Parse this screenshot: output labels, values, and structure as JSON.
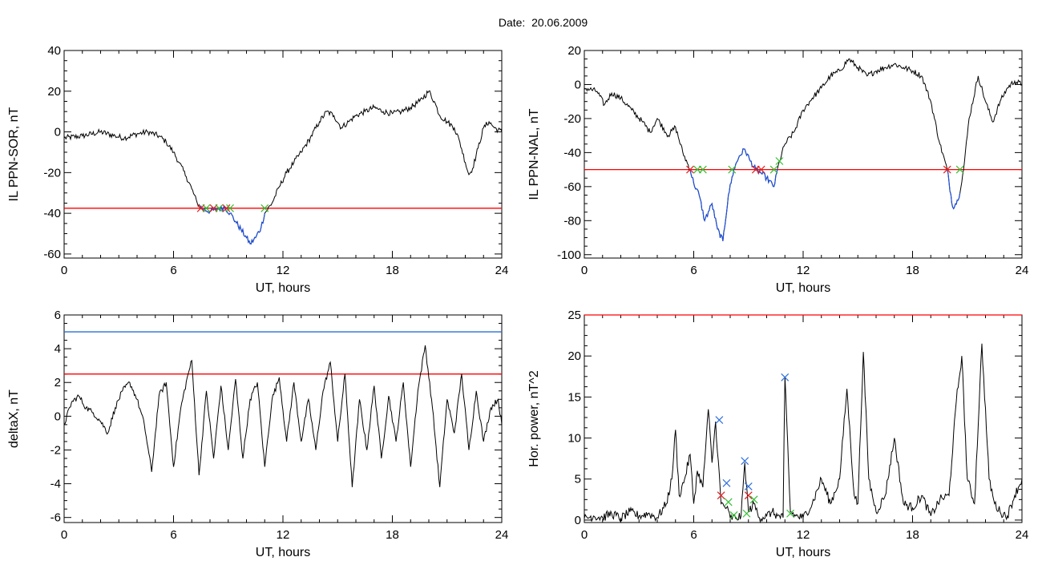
{
  "title": "Date:  20.06.2009",
  "colors": {
    "trace": "#000000",
    "threshold": "#ff0000",
    "highlight": "#1f4fd6",
    "blue_level": "#2a6fd6",
    "marker_red": "#e02020",
    "marker_green": "#30c030",
    "marker_blue": "#3070e0"
  },
  "chart_data": [
    {
      "type": "line",
      "xlabel": "UT, hours",
      "ylabel": "IL PPN-SOR, nT",
      "xlim": [
        0,
        24
      ],
      "ylim": [
        -62,
        40
      ],
      "xticks": [
        0,
        6,
        12,
        18,
        24
      ],
      "yticks": [
        -60,
        -40,
        -20,
        0,
        20,
        40
      ],
      "threshold": -37.5,
      "series": [
        {
          "x": [
            0,
            1,
            2,
            2.8,
            3.3,
            4,
            4.6,
            5.2,
            5.6,
            6,
            6.3,
            6.7,
            7.0,
            7.3,
            7.6,
            8.0,
            8.4,
            8.8,
            9.1,
            9.4,
            9.7,
            10.0,
            10.2,
            10.5,
            10.8,
            11.0,
            11.4,
            11.8,
            12.2,
            12.6,
            13.0,
            13.5,
            14.0,
            14.4,
            14.8,
            15.2,
            15.6,
            16.0,
            16.5,
            17.0,
            17.5,
            18.0,
            18.5,
            19.0,
            19.5,
            20.0,
            20.3,
            20.6,
            21.0,
            21.4,
            21.7,
            22.0,
            22.2,
            22.4,
            22.7,
            23.0,
            23.3,
            23.6,
            24
          ],
          "y": [
            -3,
            -2,
            0,
            -2,
            -3,
            -1,
            0,
            -2,
            -5,
            -10,
            -15,
            -22,
            -28,
            -35,
            -38,
            -39,
            -38,
            -37,
            -40,
            -44,
            -48,
            -52,
            -55,
            -52,
            -47,
            -40,
            -35,
            -27,
            -20,
            -15,
            -10,
            -3,
            5,
            10,
            8,
            2,
            5,
            8,
            10,
            12,
            10,
            9,
            10,
            12,
            15,
            20,
            15,
            8,
            5,
            2,
            -5,
            -15,
            -21,
            -18,
            -8,
            2,
            5,
            2,
            0
          ]
        }
      ],
      "highlight_range": [
        7.4,
        11.0
      ],
      "markers": [
        {
          "x": 7.5,
          "y": -37.5,
          "color": "red"
        },
        {
          "x": 7.8,
          "y": -37.5,
          "color": "green"
        },
        {
          "x": 8.2,
          "y": -37.5,
          "color": "red"
        },
        {
          "x": 8.5,
          "y": -37.5,
          "color": "green"
        },
        {
          "x": 8.9,
          "y": -37.5,
          "color": "red"
        },
        {
          "x": 9.1,
          "y": -37.5,
          "color": "green"
        },
        {
          "x": 11.0,
          "y": -37.5,
          "color": "green"
        }
      ]
    },
    {
      "type": "line",
      "xlabel": "UT, hours",
      "ylabel": "IL PPN-NAL, nT",
      "xlim": [
        0,
        24
      ],
      "ylim": [
        -102,
        20
      ],
      "xticks": [
        0,
        6,
        12,
        18,
        24
      ],
      "yticks": [
        -100,
        -80,
        -60,
        -40,
        -20,
        0,
        20
      ],
      "threshold": -50,
      "series": [
        {
          "x": [
            0,
            0.7,
            1.1,
            1.5,
            2,
            2.6,
            3.2,
            3.6,
            4,
            4.6,
            5,
            5.4,
            5.8,
            6.0,
            6.3,
            6.6,
            7.0,
            7.3,
            7.6,
            7.9,
            8.2,
            8.5,
            8.8,
            9.1,
            9.4,
            9.7,
            10,
            10.4,
            10.7,
            11.0,
            11.5,
            12,
            12.5,
            13,
            13.5,
            14,
            14.5,
            15,
            15.5,
            16,
            16.5,
            17,
            17.5,
            18,
            18.5,
            19.0,
            19.5,
            19.9,
            20.2,
            20.5,
            20.8,
            21.1,
            21.6,
            22.0,
            22.4,
            22.8,
            23.2,
            23.6,
            24
          ],
          "y": [
            -2,
            -4,
            -12,
            -5,
            -8,
            -15,
            -22,
            -28,
            -20,
            -30,
            -25,
            -40,
            -50,
            -58,
            -65,
            -80,
            -70,
            -85,
            -92,
            -65,
            -50,
            -42,
            -38,
            -45,
            -50,
            -52,
            -55,
            -60,
            -45,
            -35,
            -28,
            -15,
            -8,
            -2,
            5,
            8,
            15,
            10,
            5,
            8,
            10,
            12,
            10,
            8,
            5,
            -10,
            -35,
            -50,
            -72,
            -68,
            -50,
            -20,
            5,
            -10,
            -22,
            -10,
            -2,
            2,
            0
          ]
        }
      ],
      "highlight_range": [
        5.8,
        10.6
      ],
      "highlight_range2": [
        19.9,
        20.6
      ],
      "markers": [
        {
          "x": 5.8,
          "y": -50,
          "color": "red"
        },
        {
          "x": 6.2,
          "y": -50,
          "color": "green"
        },
        {
          "x": 6.5,
          "y": -50,
          "color": "green"
        },
        {
          "x": 8.1,
          "y": -50,
          "color": "green"
        },
        {
          "x": 9.4,
          "y": -50,
          "color": "red"
        },
        {
          "x": 9.7,
          "y": -50,
          "color": "red"
        },
        {
          "x": 10.4,
          "y": -50,
          "color": "green"
        },
        {
          "x": 10.7,
          "y": -45,
          "color": "green"
        },
        {
          "x": 19.9,
          "y": -50,
          "color": "red"
        },
        {
          "x": 20.6,
          "y": -50,
          "color": "green"
        }
      ]
    },
    {
      "type": "line",
      "xlabel": "UT, hours",
      "ylabel": "deltaX, nT",
      "xlim": [
        0,
        24
      ],
      "ylim": [
        -6.3,
        6
      ],
      "xticks": [
        0,
        6,
        12,
        18,
        24
      ],
      "yticks": [
        -6,
        -4,
        -2,
        0,
        2,
        4,
        6
      ],
      "thresholds": [
        {
          "y": 2.5,
          "color": "red"
        },
        {
          "y": 5.0,
          "color": "blue"
        }
      ],
      "series": [
        {
          "x": [
            0,
            0.4,
            0.8,
            1.2,
            1.6,
            2.0,
            2.4,
            2.8,
            3.2,
            3.6,
            4.0,
            4.4,
            4.8,
            5.2,
            5.6,
            6.0,
            6.4,
            6.8,
            7.0,
            7.4,
            7.8,
            8.2,
            8.6,
            9.0,
            9.4,
            9.8,
            10.2,
            10.6,
            11.0,
            11.4,
            11.8,
            12.2,
            12.6,
            13.0,
            13.4,
            13.8,
            14.2,
            14.6,
            15.0,
            15.4,
            15.8,
            16.2,
            16.6,
            17.0,
            17.4,
            17.8,
            18.2,
            18.6,
            19.0,
            19.4,
            19.8,
            20.2,
            20.6,
            21.0,
            21.4,
            21.8,
            22.2,
            22.6,
            23.0,
            23.4,
            23.8,
            24
          ],
          "y": [
            -0.5,
            0.8,
            1.2,
            0.5,
            0.2,
            -0.3,
            -1.0,
            0.5,
            1.5,
            2.0,
            1.0,
            -0.5,
            -3.3,
            1.2,
            2.0,
            -3.0,
            0.5,
            2.5,
            3.3,
            -3.5,
            1.5,
            -2.5,
            1.8,
            -2.0,
            2.2,
            -2.5,
            1.0,
            2.0,
            -3.0,
            1.0,
            2.3,
            -1.5,
            2.0,
            -1.5,
            1.0,
            -2.0,
            1.5,
            3.2,
            -1.5,
            2.5,
            -4.2,
            1.0,
            -2.0,
            1.8,
            -2.5,
            1.2,
            -1.5,
            2.0,
            -3.0,
            1.5,
            4.2,
            0.5,
            -4.2,
            1.0,
            -1.0,
            2.5,
            -2.0,
            1.5,
            -1.5,
            0.5,
            1.0,
            -0.5
          ]
        }
      ]
    },
    {
      "type": "line",
      "xlabel": "UT, hours",
      "ylabel": "Hor. power, nT^2",
      "xlim": [
        0,
        24
      ],
      "ylim": [
        -0.3,
        25
      ],
      "xticks": [
        0,
        6,
        12,
        18,
        24
      ],
      "yticks": [
        0,
        5,
        10,
        15,
        20,
        25
      ],
      "threshold": 25,
      "series": [
        {
          "x": [
            0,
            0.5,
            1,
            1.5,
            2,
            2.5,
            3,
            3.5,
            4,
            4.5,
            4.8,
            5.0,
            5.2,
            5.5,
            5.8,
            6.0,
            6.2,
            6.5,
            6.8,
            7.0,
            7.2,
            7.5,
            7.8,
            8.0,
            8.3,
            8.6,
            8.8,
            9.0,
            9.3,
            9.6,
            10.0,
            10.3,
            10.6,
            10.9,
            11.0,
            11.3,
            11.6,
            12.0,
            12.5,
            13.0,
            13.5,
            14.0,
            14.4,
            14.8,
            15.0,
            15.3,
            15.6,
            16.0,
            16.5,
            17.0,
            17.5,
            18.0,
            18.5,
            19.0,
            19.5,
            20.0,
            20.4,
            20.7,
            21.0,
            21.4,
            21.8,
            22.2,
            22.5,
            22.8,
            23.2,
            23.6,
            24
          ],
          "y": [
            0.2,
            0.5,
            0.3,
            0.8,
            0.2,
            1.0,
            0.5,
            0.8,
            0.3,
            2.0,
            5.0,
            11.0,
            3.0,
            5.0,
            8.0,
            2.0,
            6.0,
            4.0,
            13.5,
            7.0,
            12.0,
            2.0,
            1.5,
            0.3,
            0.2,
            0.5,
            7.0,
            1.0,
            2.0,
            0.3,
            0.5,
            1.0,
            0.5,
            0.3,
            17.5,
            1.0,
            0.5,
            0.3,
            2.0,
            5.0,
            2.0,
            5.0,
            16.0,
            3.0,
            2.0,
            20.5,
            5.0,
            1.0,
            3.0,
            10.0,
            2.0,
            1.5,
            3.0,
            0.5,
            2.5,
            3.0,
            14.5,
            20.0,
            5.0,
            2.0,
            21.5,
            5.0,
            2.0,
            1.0,
            0.5,
            3.0,
            5.0
          ]
        }
      ],
      "markers": [
        {
          "x": 7.4,
          "y": 12.2,
          "color": "blue"
        },
        {
          "x": 7.8,
          "y": 4.5,
          "color": "blue"
        },
        {
          "x": 7.5,
          "y": 3.0,
          "color": "red"
        },
        {
          "x": 7.9,
          "y": 2.2,
          "color": "green"
        },
        {
          "x": 8.2,
          "y": 0.6,
          "color": "green"
        },
        {
          "x": 8.8,
          "y": 7.2,
          "color": "blue"
        },
        {
          "x": 9.0,
          "y": 4.1,
          "color": "blue"
        },
        {
          "x": 9.0,
          "y": 3.0,
          "color": "red"
        },
        {
          "x": 9.3,
          "y": 2.5,
          "color": "green"
        },
        {
          "x": 8.9,
          "y": 0.8,
          "color": "green"
        },
        {
          "x": 11.0,
          "y": 17.4,
          "color": "blue"
        },
        {
          "x": 11.3,
          "y": 0.8,
          "color": "green"
        }
      ]
    }
  ]
}
